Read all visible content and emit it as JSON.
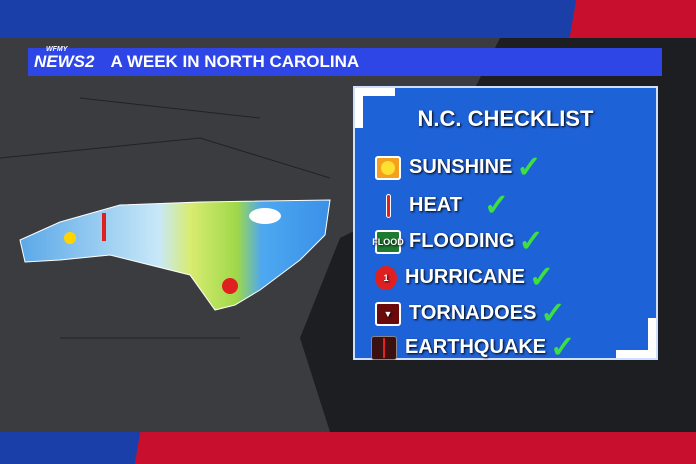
{
  "header": {
    "logo": "NEWS2",
    "logo_small": "WFMY",
    "title": "A WEEK IN NORTH CAROLINA"
  },
  "checklist": {
    "title": "N.C. CHECKLIST",
    "items": [
      {
        "label": "SUNSHINE",
        "icon": "sun-icon",
        "checked": true
      },
      {
        "label": "HEAT",
        "icon": "thermometer-icon",
        "checked": true
      },
      {
        "label": "FLOODING",
        "icon": "flood-icon",
        "icon_text": "FLOOD",
        "checked": true
      },
      {
        "label": "HURRICANE",
        "icon": "hurricane-icon",
        "icon_text": "1",
        "checked": true
      },
      {
        "label": "TORNADOES",
        "icon": "tornado-icon",
        "checked": true
      },
      {
        "label": "EARTHQUAKE",
        "icon": "earthquake-icon",
        "checked": true
      }
    ]
  },
  "colors": {
    "panel": "#1e62d8",
    "title_bar": "#2e46e6",
    "check": "#3de03d",
    "red": "#c8102e",
    "blue": "#1b3fa8"
  }
}
